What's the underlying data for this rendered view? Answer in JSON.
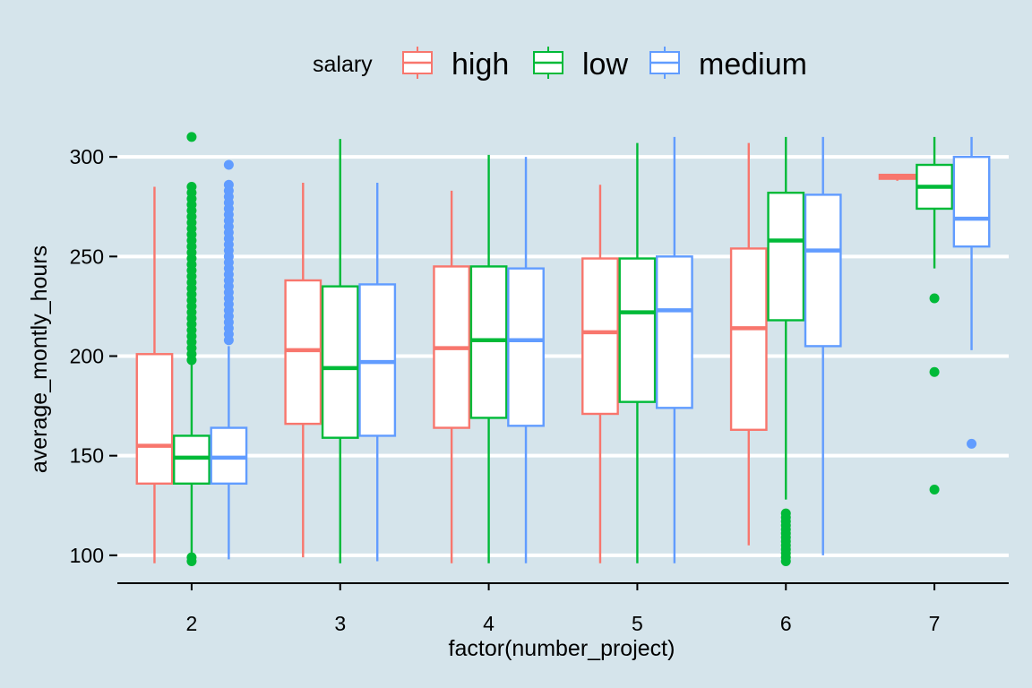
{
  "chart_data": {
    "type": "boxplot",
    "title": "",
    "xlabel": "factor(number_project)",
    "ylabel": "average_montly_hours",
    "categories": [
      "2",
      "3",
      "4",
      "5",
      "6",
      "7"
    ],
    "ylim": [
      86,
      314
    ],
    "yticks": [
      100,
      150,
      200,
      250,
      300
    ],
    "grid": "horizontal-major",
    "legend": {
      "title": "salary",
      "position": "top"
    },
    "series": [
      {
        "name": "high",
        "color": "#f8766d",
        "boxes": [
          {
            "category": "2",
            "min": 96,
            "q1": 136,
            "median": 155,
            "q3": 201,
            "max": 285,
            "outliers": []
          },
          {
            "category": "3",
            "min": 99,
            "q1": 166,
            "median": 203,
            "q3": 238,
            "max": 287,
            "outliers": []
          },
          {
            "category": "4",
            "min": 96,
            "q1": 164,
            "median": 204,
            "q3": 245,
            "max": 283,
            "outliers": []
          },
          {
            "category": "5",
            "min": 96,
            "q1": 171,
            "median": 212,
            "q3": 249,
            "max": 286,
            "outliers": []
          },
          {
            "category": "6",
            "min": 105,
            "q1": 163,
            "median": 214,
            "q3": 254,
            "max": 307,
            "outliers": []
          },
          {
            "category": "7",
            "min": 288,
            "q1": 289,
            "median": 290,
            "q3": 291,
            "max": 291,
            "outliers": []
          }
        ]
      },
      {
        "name": "low",
        "color": "#00ba38",
        "boxes": [
          {
            "category": "2",
            "min": 100,
            "q1": 136,
            "median": 149,
            "q3": 160,
            "max": 196,
            "outliers": [
              97,
              99,
              198,
              201,
              204,
              207,
              210,
              213,
              216,
              219,
              222,
              225,
              228,
              231,
              234,
              237,
              240,
              243,
              246,
              249,
              252,
              255,
              258,
              261,
              264,
              267,
              270,
              273,
              276,
              279,
              282,
              285,
              310
            ]
          },
          {
            "category": "3",
            "min": 96,
            "q1": 159,
            "median": 194,
            "q3": 235,
            "max": 309,
            "outliers": []
          },
          {
            "category": "4",
            "min": 96,
            "q1": 169,
            "median": 208,
            "q3": 245,
            "max": 301,
            "outliers": []
          },
          {
            "category": "5",
            "min": 96,
            "q1": 177,
            "median": 222,
            "q3": 249,
            "max": 307,
            "outliers": []
          },
          {
            "category": "6",
            "min": 128,
            "q1": 218,
            "median": 258,
            "q3": 282,
            "max": 310,
            "outliers": [
              97,
              99,
              101,
              103,
              105,
              107,
              109,
              111,
              113,
              115,
              117,
              119,
              121
            ]
          },
          {
            "category": "7",
            "min": 244,
            "q1": 274,
            "median": 285,
            "q3": 296,
            "max": 310,
            "outliers": [
              133,
              192,
              229
            ]
          }
        ]
      },
      {
        "name": "medium",
        "color": "#619cff",
        "boxes": [
          {
            "category": "2",
            "min": 98,
            "q1": 136,
            "median": 149,
            "q3": 164,
            "max": 205,
            "outliers": [
              208,
              211,
              214,
              217,
              220,
              223,
              226,
              229,
              232,
              235,
              238,
              241,
              244,
              247,
              250,
              253,
              256,
              259,
              262,
              265,
              268,
              271,
              274,
              277,
              280,
              283,
              286,
              296
            ]
          },
          {
            "category": "3",
            "min": 97,
            "q1": 160,
            "median": 197,
            "q3": 236,
            "max": 287,
            "outliers": []
          },
          {
            "category": "4",
            "min": 96,
            "q1": 165,
            "median": 208,
            "q3": 244,
            "max": 300,
            "outliers": []
          },
          {
            "category": "5",
            "min": 96,
            "q1": 174,
            "median": 223,
            "q3": 250,
            "max": 310,
            "outliers": []
          },
          {
            "category": "6",
            "min": 100,
            "q1": 205,
            "median": 253,
            "q3": 281,
            "max": 310,
            "outliers": []
          },
          {
            "category": "7",
            "min": 203,
            "q1": 255,
            "median": 269,
            "q3": 300,
            "max": 310,
            "outliers": [
              156
            ]
          }
        ]
      }
    ]
  }
}
